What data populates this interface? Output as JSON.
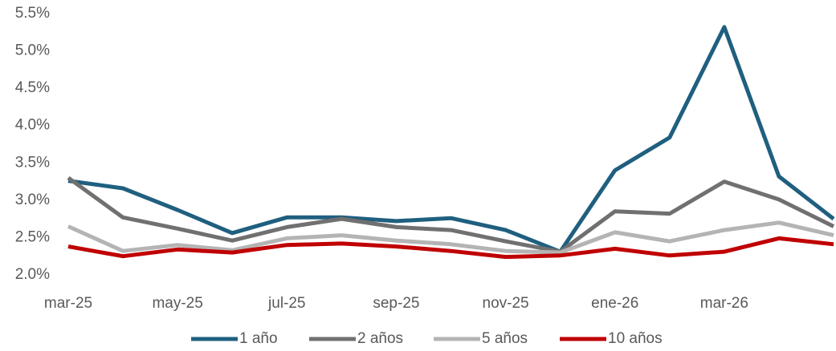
{
  "chart_data": {
    "type": "line",
    "categories": [
      "mar-25",
      null,
      "may-25",
      null,
      "jul-25",
      null,
      "sep-25",
      null,
      "nov-25",
      null,
      "ene-26",
      null,
      "mar-26",
      null,
      null
    ],
    "series": [
      {
        "name": "1 año",
        "color": "#1f5f7f",
        "values": [
          3.26,
          3.16,
          2.87,
          2.56,
          2.77,
          2.77,
          2.72,
          2.76,
          2.6,
          2.31,
          3.4,
          3.84,
          5.32,
          3.32,
          2.75
        ]
      },
      {
        "name": "2 años",
        "color": "#707070",
        "values": [
          3.3,
          2.77,
          2.62,
          2.46,
          2.64,
          2.75,
          2.64,
          2.6,
          2.45,
          2.31,
          2.85,
          2.82,
          3.25,
          3.01,
          2.65
        ]
      },
      {
        "name": "5 años",
        "color": "#b4b4b4",
        "values": [
          2.65,
          2.32,
          2.4,
          2.33,
          2.49,
          2.53,
          2.46,
          2.41,
          2.32,
          2.3,
          2.57,
          2.45,
          2.6,
          2.7,
          2.53
        ]
      },
      {
        "name": "10 años",
        "color": "#c00000",
        "values": [
          2.38,
          2.25,
          2.34,
          2.3,
          2.4,
          2.42,
          2.38,
          2.32,
          2.24,
          2.26,
          2.35,
          2.26,
          2.31,
          2.49,
          2.41
        ]
      }
    ],
    "ylim": [
      2.0,
      5.5
    ],
    "yticks": [
      {
        "value": 2.0,
        "label": "2.0%"
      },
      {
        "value": 2.5,
        "label": "2.5%"
      },
      {
        "value": 3.0,
        "label": "3.0%"
      },
      {
        "value": 3.5,
        "label": "3.5%"
      },
      {
        "value": 4.0,
        "label": "4.0%"
      },
      {
        "value": 4.5,
        "label": "4.5%"
      },
      {
        "value": 5.0,
        "label": "5.0%"
      },
      {
        "value": 5.5,
        "label": "5.5%"
      }
    ],
    "grid": false,
    "legend": "bottom"
  }
}
